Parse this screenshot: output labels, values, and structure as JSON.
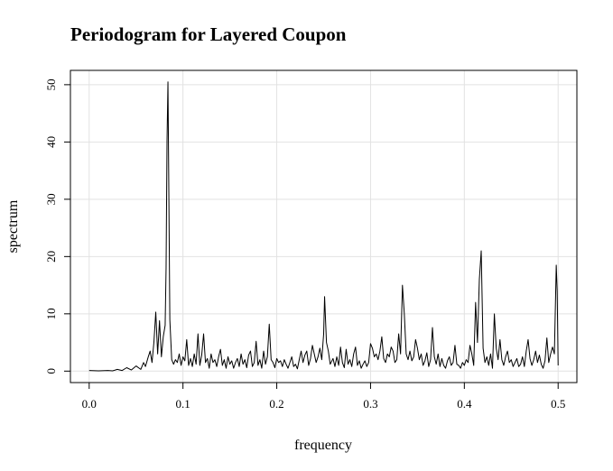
{
  "chart_data": {
    "type": "line",
    "title": "Periodogram for Layered Coupon",
    "xlabel": "frequency",
    "ylabel": "spectrum",
    "xlim": [
      -0.02,
      0.52
    ],
    "ylim": [
      -2,
      52.5
    ],
    "x_ticks": [
      "0.0",
      "0.1",
      "0.2",
      "0.3",
      "0.4",
      "0.5"
    ],
    "y_ticks": [
      "0",
      "10",
      "20",
      "30",
      "40",
      "50"
    ],
    "grid": true,
    "series_points": [
      [
        0.0,
        0.1
      ],
      [
        0.01,
        0.05
      ],
      [
        0.02,
        0.1
      ],
      [
        0.025,
        0.05
      ],
      [
        0.03,
        0.3
      ],
      [
        0.035,
        0.1
      ],
      [
        0.04,
        0.6
      ],
      [
        0.045,
        0.2
      ],
      [
        0.05,
        0.9
      ],
      [
        0.055,
        0.3
      ],
      [
        0.058,
        1.5
      ],
      [
        0.06,
        0.8
      ],
      [
        0.063,
        2.5
      ],
      [
        0.065,
        3.5
      ],
      [
        0.067,
        1.5
      ],
      [
        0.069,
        5.0
      ],
      [
        0.071,
        10.3
      ],
      [
        0.073,
        3.0
      ],
      [
        0.075,
        8.8
      ],
      [
        0.077,
        2.5
      ],
      [
        0.079,
        6.0
      ],
      [
        0.081,
        8.0
      ],
      [
        0.082,
        18.0
      ],
      [
        0.083,
        40.2
      ],
      [
        0.084,
        50.5
      ],
      [
        0.085,
        30.0
      ],
      [
        0.086,
        9.0
      ],
      [
        0.088,
        2.0
      ],
      [
        0.09,
        1.2
      ],
      [
        0.092,
        2.0
      ],
      [
        0.094,
        1.5
      ],
      [
        0.096,
        3.0
      ],
      [
        0.098,
        1.0
      ],
      [
        0.1,
        2.5
      ],
      [
        0.102,
        1.8
      ],
      [
        0.104,
        5.5
      ],
      [
        0.106,
        1.0
      ],
      [
        0.108,
        2.2
      ],
      [
        0.11,
        0.8
      ],
      [
        0.112,
        3.0
      ],
      [
        0.114,
        1.2
      ],
      [
        0.116,
        6.5
      ],
      [
        0.118,
        1.0
      ],
      [
        0.12,
        2.8
      ],
      [
        0.122,
        6.5
      ],
      [
        0.124,
        1.5
      ],
      [
        0.126,
        2.2
      ],
      [
        0.128,
        0.5
      ],
      [
        0.13,
        3.0
      ],
      [
        0.132,
        1.5
      ],
      [
        0.134,
        2.0
      ],
      [
        0.136,
        0.8
      ],
      [
        0.138,
        2.5
      ],
      [
        0.14,
        3.8
      ],
      [
        0.142,
        1.0
      ],
      [
        0.144,
        2.0
      ],
      [
        0.146,
        0.5
      ],
      [
        0.148,
        2.5
      ],
      [
        0.15,
        1.2
      ],
      [
        0.152,
        1.8
      ],
      [
        0.154,
        0.5
      ],
      [
        0.156,
        1.5
      ],
      [
        0.158,
        2.2
      ],
      [
        0.16,
        0.8
      ],
      [
        0.162,
        3.0
      ],
      [
        0.164,
        1.2
      ],
      [
        0.166,
        2.0
      ],
      [
        0.168,
        0.6
      ],
      [
        0.17,
        2.8
      ],
      [
        0.172,
        3.5
      ],
      [
        0.174,
        0.8
      ],
      [
        0.176,
        1.5
      ],
      [
        0.178,
        5.2
      ],
      [
        0.18,
        1.0
      ],
      [
        0.182,
        2.0
      ],
      [
        0.184,
        0.5
      ],
      [
        0.186,
        3.5
      ],
      [
        0.188,
        1.2
      ],
      [
        0.19,
        2.5
      ],
      [
        0.192,
        8.2
      ],
      [
        0.194,
        2.0
      ],
      [
        0.196,
        1.5
      ],
      [
        0.198,
        0.6
      ],
      [
        0.2,
        2.2
      ],
      [
        0.202,
        1.5
      ],
      [
        0.204,
        1.8
      ],
      [
        0.206,
        0.8
      ],
      [
        0.208,
        2.0
      ],
      [
        0.21,
        1.2
      ],
      [
        0.212,
        0.5
      ],
      [
        0.214,
        1.5
      ],
      [
        0.216,
        2.5
      ],
      [
        0.218,
        0.8
      ],
      [
        0.22,
        1.2
      ],
      [
        0.222,
        0.4
      ],
      [
        0.224,
        2.0
      ],
      [
        0.226,
        3.5
      ],
      [
        0.228,
        1.5
      ],
      [
        0.23,
        2.8
      ],
      [
        0.232,
        3.5
      ],
      [
        0.234,
        1.0
      ],
      [
        0.236,
        2.2
      ],
      [
        0.238,
        4.5
      ],
      [
        0.24,
        3.0
      ],
      [
        0.242,
        1.5
      ],
      [
        0.244,
        2.5
      ],
      [
        0.246,
        4.0
      ],
      [
        0.248,
        2.0
      ],
      [
        0.25,
        6.5
      ],
      [
        0.251,
        13.0
      ],
      [
        0.253,
        5.0
      ],
      [
        0.255,
        3.5
      ],
      [
        0.257,
        1.2
      ],
      [
        0.26,
        2.2
      ],
      [
        0.262,
        0.8
      ],
      [
        0.264,
        2.5
      ],
      [
        0.266,
        1.0
      ],
      [
        0.268,
        4.2
      ],
      [
        0.27,
        1.5
      ],
      [
        0.272,
        0.6
      ],
      [
        0.274,
        3.8
      ],
      [
        0.276,
        1.2
      ],
      [
        0.278,
        2.0
      ],
      [
        0.28,
        0.8
      ],
      [
        0.282,
        3.0
      ],
      [
        0.284,
        4.2
      ],
      [
        0.286,
        1.0
      ],
      [
        0.288,
        1.8
      ],
      [
        0.29,
        0.5
      ],
      [
        0.292,
        1.2
      ],
      [
        0.294,
        1.8
      ],
      [
        0.296,
        0.8
      ],
      [
        0.298,
        1.5
      ],
      [
        0.3,
        4.8
      ],
      [
        0.302,
        4.0
      ],
      [
        0.304,
        2.5
      ],
      [
        0.306,
        3.0
      ],
      [
        0.308,
        2.0
      ],
      [
        0.31,
        3.5
      ],
      [
        0.312,
        6.0
      ],
      [
        0.314,
        2.2
      ],
      [
        0.316,
        1.5
      ],
      [
        0.318,
        3.0
      ],
      [
        0.32,
        2.5
      ],
      [
        0.322,
        4.2
      ],
      [
        0.324,
        3.5
      ],
      [
        0.326,
        1.5
      ],
      [
        0.328,
        2.0
      ],
      [
        0.33,
        6.5
      ],
      [
        0.332,
        3.0
      ],
      [
        0.334,
        15.0
      ],
      [
        0.336,
        10.0
      ],
      [
        0.338,
        3.0
      ],
      [
        0.34,
        2.0
      ],
      [
        0.342,
        3.5
      ],
      [
        0.344,
        1.8
      ],
      [
        0.346,
        2.5
      ],
      [
        0.348,
        5.5
      ],
      [
        0.35,
        4.0
      ],
      [
        0.352,
        2.0
      ],
      [
        0.354,
        3.0
      ],
      [
        0.356,
        1.0
      ],
      [
        0.358,
        1.8
      ],
      [
        0.36,
        3.2
      ],
      [
        0.362,
        0.8
      ],
      [
        0.364,
        2.0
      ],
      [
        0.366,
        7.6
      ],
      [
        0.368,
        2.5
      ],
      [
        0.37,
        1.2
      ],
      [
        0.372,
        3.0
      ],
      [
        0.374,
        0.8
      ],
      [
        0.376,
        2.2
      ],
      [
        0.378,
        1.0
      ],
      [
        0.38,
        0.5
      ],
      [
        0.382,
        1.8
      ],
      [
        0.384,
        2.5
      ],
      [
        0.386,
        1.0
      ],
      [
        0.388,
        1.5
      ],
      [
        0.39,
        4.5
      ],
      [
        0.392,
        1.2
      ],
      [
        0.394,
        1.0
      ],
      [
        0.396,
        0.5
      ],
      [
        0.398,
        1.5
      ],
      [
        0.4,
        1.0
      ],
      [
        0.402,
        2.0
      ],
      [
        0.404,
        1.5
      ],
      [
        0.406,
        4.5
      ],
      [
        0.408,
        3.0
      ],
      [
        0.41,
        1.0
      ],
      [
        0.412,
        12.0
      ],
      [
        0.414,
        5.0
      ],
      [
        0.416,
        16.0
      ],
      [
        0.418,
        21.0
      ],
      [
        0.42,
        4.0
      ],
      [
        0.422,
        1.5
      ],
      [
        0.424,
        2.5
      ],
      [
        0.426,
        1.0
      ],
      [
        0.428,
        3.0
      ],
      [
        0.43,
        0.5
      ],
      [
        0.432,
        10.0
      ],
      [
        0.434,
        4.0
      ],
      [
        0.436,
        2.0
      ],
      [
        0.438,
        5.5
      ],
      [
        0.44,
        2.0
      ],
      [
        0.442,
        1.0
      ],
      [
        0.444,
        2.5
      ],
      [
        0.446,
        3.5
      ],
      [
        0.448,
        1.5
      ],
      [
        0.45,
        2.0
      ],
      [
        0.452,
        0.8
      ],
      [
        0.454,
        1.5
      ],
      [
        0.456,
        2.2
      ],
      [
        0.458,
        0.8
      ],
      [
        0.46,
        1.2
      ],
      [
        0.462,
        2.5
      ],
      [
        0.464,
        0.8
      ],
      [
        0.466,
        3.5
      ],
      [
        0.468,
        5.5
      ],
      [
        0.47,
        2.2
      ],
      [
        0.472,
        1.0
      ],
      [
        0.474,
        2.0
      ],
      [
        0.476,
        3.5
      ],
      [
        0.478,
        1.5
      ],
      [
        0.48,
        2.8
      ],
      [
        0.482,
        1.2
      ],
      [
        0.484,
        0.5
      ],
      [
        0.486,
        1.8
      ],
      [
        0.488,
        5.8
      ],
      [
        0.49,
        1.5
      ],
      [
        0.492,
        3.0
      ],
      [
        0.494,
        4.2
      ],
      [
        0.496,
        3.0
      ],
      [
        0.498,
        18.5
      ],
      [
        0.499,
        14.0
      ],
      [
        0.5,
        1.0
      ]
    ]
  }
}
